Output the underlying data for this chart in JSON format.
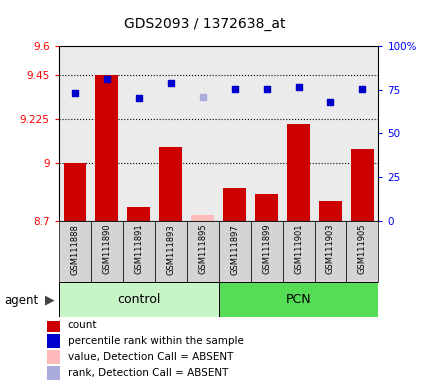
{
  "title": "GDS2093 / 1372638_at",
  "samples": [
    "GSM111888",
    "GSM111890",
    "GSM111891",
    "GSM111893",
    "GSM111895",
    "GSM111897",
    "GSM111899",
    "GSM111901",
    "GSM111903",
    "GSM111905"
  ],
  "bar_values": [
    9.0,
    9.45,
    8.77,
    9.08,
    8.73,
    8.87,
    8.84,
    9.2,
    8.8,
    9.07
  ],
  "bar_colors": [
    "#cc0000",
    "#cc0000",
    "#cc0000",
    "#cc0000",
    "#ffbbbb",
    "#cc0000",
    "#cc0000",
    "#cc0000",
    "#cc0000",
    "#cc0000"
  ],
  "dot_values": [
    9.36,
    9.43,
    9.33,
    9.41,
    9.34,
    9.38,
    9.38,
    9.39,
    9.31,
    9.38
  ],
  "dot_colors": [
    "#0000cc",
    "#0000cc",
    "#0000cc",
    "#0000cc",
    "#aaaadd",
    "#0000cc",
    "#0000cc",
    "#0000cc",
    "#0000cc",
    "#0000cc"
  ],
  "ylim_left": [
    8.7,
    9.6
  ],
  "ylim_right": [
    0,
    100
  ],
  "yticks_left": [
    8.7,
    9.0,
    9.225,
    9.45,
    9.6
  ],
  "ytick_labels_left": [
    "8.7",
    "9",
    "9.225",
    "9.45",
    "9.6"
  ],
  "yticks_right": [
    0,
    25,
    50,
    75,
    100
  ],
  "ytick_labels_right": [
    "0",
    "25",
    "50",
    "75",
    "100%"
  ],
  "hlines": [
    9.0,
    9.225,
    9.45
  ],
  "bar_bottom": 8.7,
  "control_color_light": "#c8f5c8",
  "control_color": "#aaeaaa",
  "pcn_color": "#55dd55",
  "col_bg": "#d4d4d4",
  "white_bg": "#ffffff",
  "legend_items": [
    {
      "label": "count",
      "color": "#cc0000"
    },
    {
      "label": "percentile rank within the sample",
      "color": "#0000cc"
    },
    {
      "label": "value, Detection Call = ABSENT",
      "color": "#ffbbbb"
    },
    {
      "label": "rank, Detection Call = ABSENT",
      "color": "#aaaadd"
    }
  ]
}
